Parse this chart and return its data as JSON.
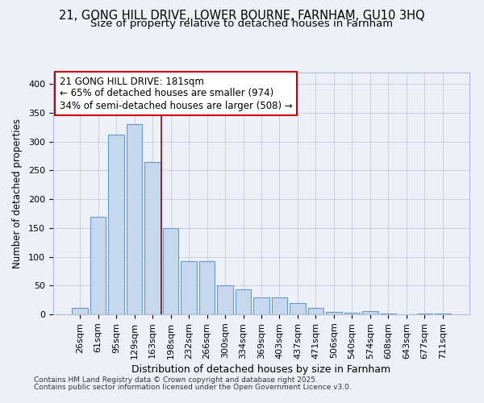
{
  "title1": "21, GONG HILL DRIVE, LOWER BOURNE, FARNHAM, GU10 3HQ",
  "title2": "Size of property relative to detached houses in Farnham",
  "xlabel": "Distribution of detached houses by size in Farnham",
  "ylabel": "Number of detached properties",
  "categories": [
    "26sqm",
    "61sqm",
    "95sqm",
    "129sqm",
    "163sqm",
    "198sqm",
    "232sqm",
    "266sqm",
    "300sqm",
    "334sqm",
    "369sqm",
    "403sqm",
    "437sqm",
    "471sqm",
    "506sqm",
    "540sqm",
    "574sqm",
    "608sqm",
    "643sqm",
    "677sqm",
    "711sqm"
  ],
  "values": [
    11,
    170,
    312,
    330,
    265,
    150,
    92,
    92,
    50,
    43,
    29,
    29,
    20,
    11,
    4,
    3,
    5,
    1,
    0,
    1,
    2
  ],
  "bar_color": "#c5d8ed",
  "bar_edge_color": "#6699cc",
  "vline_x": 4.5,
  "vline_color": "#aa0000",
  "annotation_title": "21 GONG HILL DRIVE: 181sqm",
  "annotation_line1": "← 65% of detached houses are smaller (974)",
  "annotation_line2": "34% of semi-detached houses are larger (508) →",
  "annotation_box_color": "#ffffff",
  "annotation_box_edge": "#cc0000",
  "background_color": "#edf1f7",
  "footer1": "Contains HM Land Registry data © Crown copyright and database right 2025.",
  "footer2": "Contains public sector information licensed under the Open Government Licence v3.0.",
  "ylim": [
    0,
    420
  ],
  "yticks": [
    0,
    50,
    100,
    150,
    200,
    250,
    300,
    350,
    400
  ],
  "title_fontsize": 10.5,
  "subtitle_fontsize": 9.5,
  "xlabel_fontsize": 9,
  "ylabel_fontsize": 8.5,
  "tick_fontsize": 8,
  "footer_fontsize": 6.5,
  "annotation_fontsize": 8.5
}
